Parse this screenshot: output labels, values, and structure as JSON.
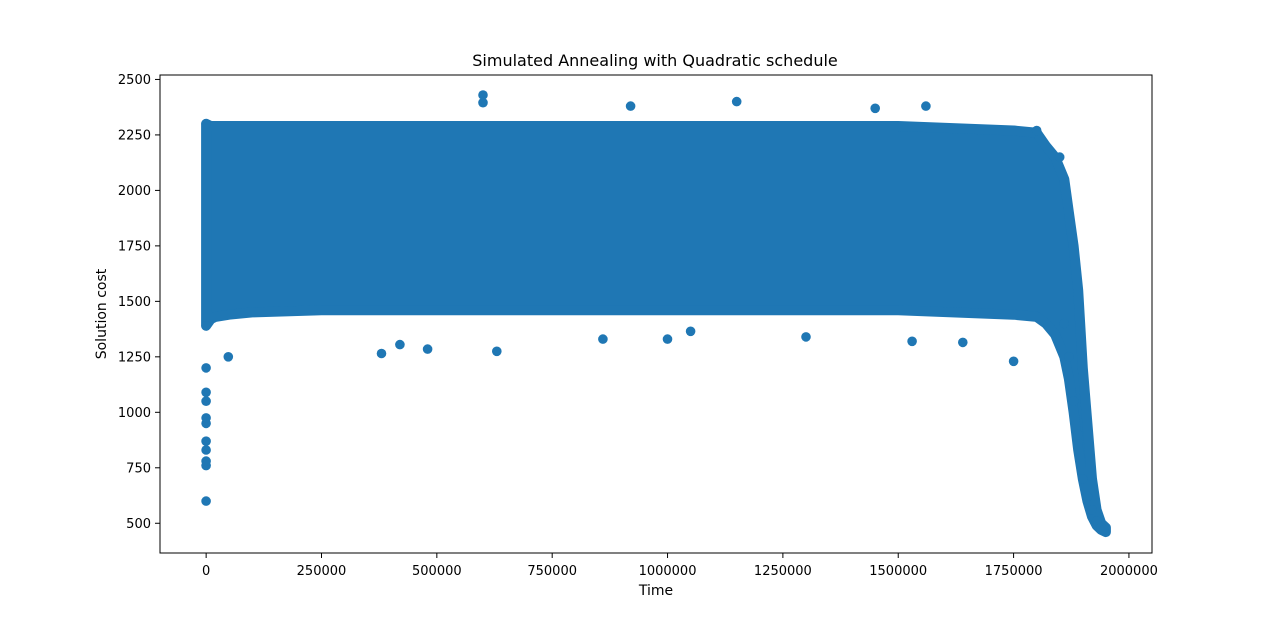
{
  "chart_data": {
    "type": "scatter",
    "title": "Simulated Annealing with Quadratic schedule",
    "xlabel": "Time",
    "ylabel": "Solution cost",
    "xlim": [
      -100000,
      2050000
    ],
    "ylim": [
      366,
      2520
    ],
    "xticks": [
      0,
      250000,
      500000,
      750000,
      1000000,
      1250000,
      1500000,
      1750000,
      2000000
    ],
    "xtick_labels": [
      "0",
      "250000",
      "500000",
      "750000",
      "1000000",
      "1250000",
      "1500000",
      "1750000",
      "2000000"
    ],
    "yticks": [
      500,
      750,
      1000,
      1250,
      1500,
      1750,
      2000,
      2250,
      2500
    ],
    "ytick_labels": [
      "500",
      "750",
      "1000",
      "1250",
      "1500",
      "1750",
      "2000",
      "2250",
      "2500"
    ],
    "grid": false,
    "legend": "none",
    "color": "#1f77b4",
    "series": [
      {
        "points_x": [
          0,
          0,
          0,
          0,
          0,
          0,
          0,
          0,
          0,
          0,
          0,
          0,
          48000,
          380000,
          420000,
          480000,
          600000,
          600000,
          630000,
          860000,
          920000,
          1000000,
          1050000,
          1150000,
          1300000,
          1450000,
          1530000,
          1560000,
          1640000,
          1750000,
          1800000,
          1850000,
          1860000,
          1870000,
          1880000,
          1890000,
          1900000,
          1910000,
          1920000,
          1930000,
          1940000,
          1945000
        ],
        "points_y": [
          600,
          760,
          780,
          830,
          870,
          950,
          975,
          1050,
          1090,
          1200,
          1390,
          2300,
          1250,
          1265,
          1305,
          1285,
          2430,
          2395,
          1275,
          1330,
          2380,
          1330,
          1365,
          2400,
          1340,
          2370,
          1320,
          2380,
          1315,
          1230,
          2270,
          2150,
          1400,
          1250,
          1050,
          900,
          700,
          620,
          560,
          510,
          480,
          470
        ],
        "band": {
          "x": [
            0,
            10000,
            20000,
            50000,
            100000,
            250000,
            500000,
            750000,
            1000000,
            1250000,
            1500000,
            1750000,
            1800000,
            1820000,
            1840000,
            1860000,
            1870000,
            1880000,
            1890000,
            1900000,
            1910000,
            1920000,
            1930000,
            1940000,
            1950000
          ],
          "lower": [
            1390,
            1420,
            1430,
            1440,
            1450,
            1460,
            1460,
            1460,
            1460,
            1460,
            1460,
            1440,
            1430,
            1400,
            1350,
            1250,
            1150,
            1000,
            830,
            700,
            600,
            530,
            490,
            470,
            460
          ],
          "upper": [
            2300,
            2290,
            2290,
            2290,
            2290,
            2290,
            2290,
            2290,
            2290,
            2290,
            2290,
            2270,
            2260,
            2200,
            2150,
            2050,
            1900,
            1750,
            1550,
            1200,
            950,
            700,
            560,
            500,
            480
          ]
        }
      }
    ]
  }
}
